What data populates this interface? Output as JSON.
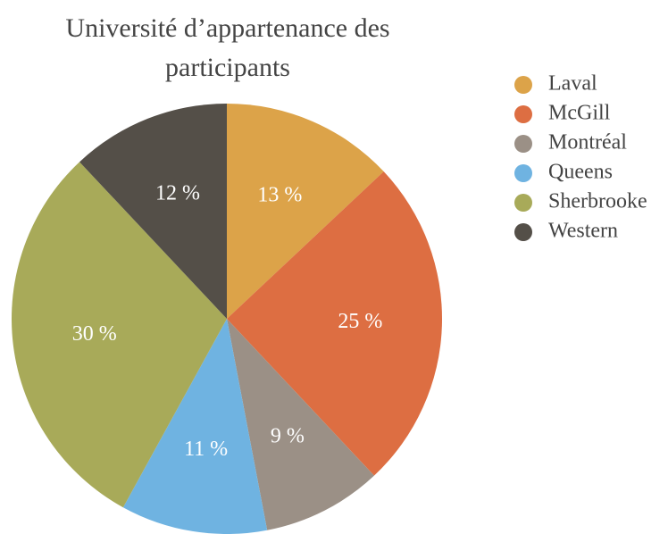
{
  "chart_data": {
    "type": "pie",
    "title": "Université d’appartenance des participants",
    "categories": [
      "Laval",
      "McGill",
      "Montréal",
      "Queens",
      "Sherbrooke",
      "Western"
    ],
    "values": [
      13,
      25,
      9,
      11,
      30,
      12
    ],
    "value_labels": [
      "13 %",
      "25 %",
      "9 %",
      "11 %",
      "30 %",
      "12 %"
    ],
    "colors": [
      "#dca349",
      "#dd6e42",
      "#9b9086",
      "#6fb3e1",
      "#a8aa59",
      "#544f48"
    ],
    "legend": "right"
  }
}
